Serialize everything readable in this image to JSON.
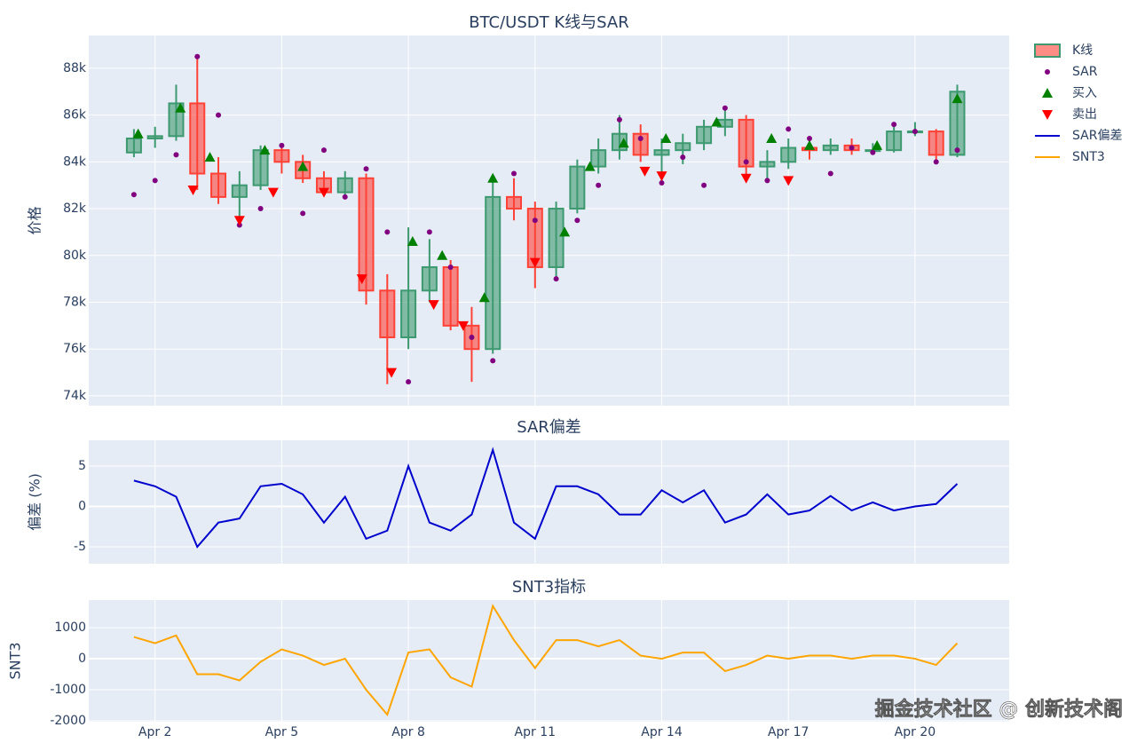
{
  "chart_data": [
    {
      "type": "candlestick",
      "title": "BTC/USDT K线与SAR",
      "ylabel": "价格",
      "x": [
        1.5,
        2,
        2.5,
        3,
        3.5,
        4,
        4.5,
        5,
        5.5,
        6,
        6.5,
        7,
        7.5,
        8,
        8.5,
        9,
        9.5,
        10,
        10.5,
        11,
        11.5,
        12,
        12.5,
        13,
        13.5,
        14,
        14.5,
        15,
        15.5,
        16,
        16.5,
        17,
        17.5,
        18,
        18.5,
        19,
        19.5,
        20,
        20.5,
        21
      ],
      "candles": {
        "name": "K线",
        "increasing_color": "#3d9970",
        "decreasing_color": "#ff4136",
        "open": [
          84400,
          85000,
          85100,
          86500,
          83500,
          82500,
          83000,
          84500,
          84000,
          83300,
          82700,
          83300,
          78500,
          76500,
          78500,
          79500,
          77000,
          76000,
          82500,
          82000,
          79500,
          82000,
          83800,
          84500,
          85200,
          84300,
          84500,
          84800,
          85500,
          85800,
          83800,
          84000,
          84600,
          84500,
          84700,
          84500,
          84500,
          85300,
          85300,
          84300
        ],
        "high": [
          85400,
          85500,
          87300,
          88500,
          84200,
          83600,
          84700,
          84800,
          84300,
          83600,
          83600,
          83500,
          79200,
          81200,
          80700,
          79800,
          77800,
          83300,
          83300,
          82300,
          82300,
          84100,
          85000,
          86000,
          85600,
          85000,
          85200,
          85800,
          86200,
          86000,
          84500,
          85000,
          84900,
          85000,
          85000,
          84800,
          85600,
          85700,
          85400,
          87300
        ],
        "low": [
          84200,
          84600,
          84900,
          82800,
          82200,
          81300,
          82800,
          83500,
          83100,
          82600,
          82400,
          77900,
          74500,
          76000,
          78000,
          76800,
          74600,
          75800,
          81500,
          78600,
          79000,
          81800,
          83500,
          84100,
          84000,
          83200,
          83900,
          84500,
          85100,
          83400,
          83100,
          83700,
          84100,
          84300,
          84300,
          84300,
          84400,
          85100,
          84000,
          84200
        ],
        "close": [
          85000,
          85100,
          86500,
          83500,
          82500,
          83000,
          84500,
          84000,
          83300,
          82700,
          83300,
          78500,
          76500,
          78500,
          79500,
          77000,
          76000,
          82500,
          82000,
          79500,
          82000,
          83800,
          84500,
          85200,
          84300,
          84500,
          84800,
          85500,
          85800,
          83800,
          84000,
          84600,
          84500,
          84700,
          84500,
          84500,
          85300,
          85300,
          84300,
          87000
        ]
      },
      "sar": {
        "name": "SAR",
        "color": "#800080",
        "values": [
          82600,
          83200,
          84300,
          88500,
          86000,
          81300,
          82000,
          84700,
          81800,
          84500,
          82500,
          83700,
          81000,
          74600,
          81000,
          79500,
          76500,
          75500,
          83500,
          81500,
          79000,
          81500,
          83000,
          85800,
          85000,
          83100,
          84200,
          83000,
          86300,
          84000,
          83200,
          85400,
          85000,
          83500,
          84600,
          84400,
          85600,
          85300,
          84000,
          84500
        ]
      },
      "buy": {
        "name": "买入",
        "color": "#008000",
        "x": [
          1.6,
          2.6,
          3.3,
          4.6,
          5.5,
          8.1,
          8.8,
          9.8,
          10.0,
          11.7,
          12.3,
          13.1,
          14.1,
          15.3,
          16.6,
          17.5,
          19.1,
          21.0
        ],
        "y": [
          85200,
          86300,
          84200,
          84500,
          83800,
          80600,
          80000,
          78200,
          83300,
          81000,
          83800,
          84800,
          85000,
          85700,
          85000,
          84700,
          84700,
          86700
        ]
      },
      "sell": {
        "name": "卖出",
        "color": "#ff0000",
        "x": [
          2.9,
          4.0,
          4.8,
          6.0,
          6.9,
          7.6,
          8.6,
          9.3,
          11.0,
          13.6,
          14.0,
          16.0,
          17.0
        ],
        "y": [
          82800,
          81500,
          82700,
          82700,
          79000,
          75000,
          77900,
          77000,
          79700,
          83600,
          83400,
          83300,
          83200
        ]
      },
      "xlim": [
        0.43,
        22.23
      ],
      "ylim": [
        73580,
        89400
      ],
      "yticks": [
        {
          "value": 74000,
          "label": "74k"
        },
        {
          "value": 76000,
          "label": "76k"
        },
        {
          "value": 78000,
          "label": "78k"
        },
        {
          "value": 80000,
          "label": "80k"
        },
        {
          "value": 82000,
          "label": "82k"
        },
        {
          "value": 84000,
          "label": "84k"
        },
        {
          "value": 86000,
          "label": "86k"
        },
        {
          "value": 88000,
          "label": "88k"
        }
      ]
    },
    {
      "type": "line",
      "title": "SAR偏差",
      "ylabel": "偏差 (%)",
      "x": [
        1.5,
        2,
        2.5,
        3,
        3.5,
        4,
        4.5,
        5,
        5.5,
        6,
        6.5,
        7,
        7.5,
        8,
        8.5,
        9,
        9.5,
        10,
        10.5,
        11,
        11.5,
        12,
        12.5,
        13,
        13.5,
        14,
        14.5,
        15,
        15.5,
        16,
        16.5,
        17,
        17.5,
        18,
        18.5,
        19,
        19.5,
        20,
        20.5,
        21
      ],
      "series": [
        {
          "name": "SAR偏差",
          "color": "#0000cd",
          "values": [
            3.2,
            2.5,
            1.2,
            -5,
            -2,
            -1.5,
            2.5,
            2.8,
            1.5,
            -2,
            1.2,
            -4,
            -3,
            5,
            -2,
            -3,
            -1,
            7,
            -2,
            -4,
            2.5,
            2.5,
            1.5,
            -1,
            -1,
            2,
            0.5,
            2,
            -2,
            -1,
            1.5,
            -1,
            -0.5,
            1.3,
            -0.5,
            0.5,
            -0.5,
            0,
            0.3,
            2.8
          ]
        }
      ],
      "xlim": [
        0.43,
        22.23
      ],
      "ylim": [
        -7.09,
        8.19
      ],
      "yticks": [
        -5,
        0,
        5
      ]
    },
    {
      "type": "line",
      "title": "SNT3指标",
      "ylabel": "SNT3",
      "x": [
        1.5,
        2,
        2.5,
        3,
        3.5,
        4,
        4.5,
        5,
        5.5,
        6,
        6.5,
        7,
        7.5,
        8,
        8.5,
        9,
        9.5,
        10,
        10.5,
        11,
        11.5,
        12,
        12.5,
        13,
        13.5,
        14,
        14.5,
        15,
        15.5,
        16,
        16.5,
        17,
        17.5,
        18,
        18.5,
        19,
        19.5,
        20,
        20.5,
        21
      ],
      "series": [
        {
          "name": "SNT3",
          "color": "#ffa500",
          "values": [
            700,
            500,
            750,
            -500,
            -500,
            -700,
            -100,
            300,
            100,
            -200,
            0,
            -1000,
            -1800,
            200,
            300,
            -600,
            -900,
            1700,
            600,
            -300,
            600,
            600,
            400,
            600,
            100,
            0,
            200,
            200,
            -400,
            -200,
            100,
            0,
            100,
            100,
            0,
            100,
            100,
            0,
            -200,
            500
          ]
        }
      ],
      "xlim": [
        0.43,
        22.23
      ],
      "ylim": [
        -2030,
        1890
      ],
      "yticks": [
        -2000,
        -1000,
        0,
        1000
      ],
      "xticks": [
        {
          "value": 2,
          "label": "Apr 2"
        },
        {
          "value": 5,
          "label": "Apr 5"
        },
        {
          "value": 8,
          "label": "Apr 8"
        },
        {
          "value": 11,
          "label": "Apr 11"
        },
        {
          "value": 14,
          "label": "Apr 14"
        },
        {
          "value": 17,
          "label": "Apr 17"
        },
        {
          "value": 20,
          "label": "Apr 20"
        }
      ]
    }
  ],
  "watermark": "掘金技术社区 @ 创新技术阁"
}
